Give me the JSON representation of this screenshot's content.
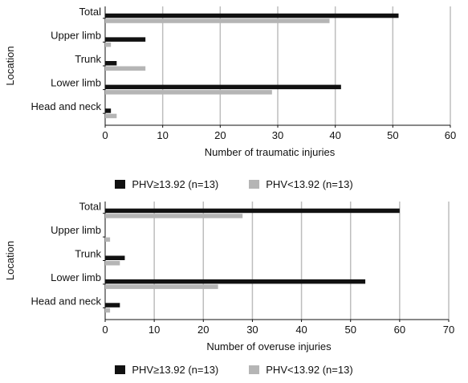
{
  "chart_data": [
    {
      "type": "bar",
      "orientation": "horizontal",
      "title": "",
      "categories": [
        "Total",
        "Upper limb",
        "Trunk",
        "Lower limb",
        "Head and neck"
      ],
      "series": [
        {
          "name": "PHV≥13.92 (n=13)",
          "values": [
            51,
            7,
            2,
            41,
            1
          ],
          "color": "#111111"
        },
        {
          "name": "PHV<13.92 (n=13)",
          "values": [
            39,
            1,
            7,
            29,
            2
          ],
          "color": "#b5b5b5"
        }
      ],
      "xlabel": "Number of traumatic injuries",
      "ylabel": "Location",
      "xlim": [
        0,
        60
      ],
      "xticks": [
        0,
        10,
        20,
        30,
        40,
        50,
        60
      ],
      "grid": "vertical",
      "legend": "bottom-center"
    },
    {
      "type": "bar",
      "orientation": "horizontal",
      "title": "",
      "categories": [
        "Total",
        "Upper limb",
        "Trunk",
        "Lower limb",
        "Head and neck"
      ],
      "series": [
        {
          "name": "PHV≥13.92 (n=13)",
          "values": [
            60,
            0,
            4,
            53,
            3
          ],
          "color": "#111111"
        },
        {
          "name": "PHV<13.92 (n=13)",
          "values": [
            28,
            1,
            3,
            23,
            1
          ],
          "color": "#b5b5b5"
        }
      ],
      "xlabel": "Number of overuse injuries",
      "ylabel": "Location",
      "xlim": [
        0,
        70
      ],
      "xticks": [
        0,
        10,
        20,
        30,
        40,
        50,
        60,
        70
      ],
      "grid": "vertical",
      "legend": "bottom-center"
    }
  ]
}
